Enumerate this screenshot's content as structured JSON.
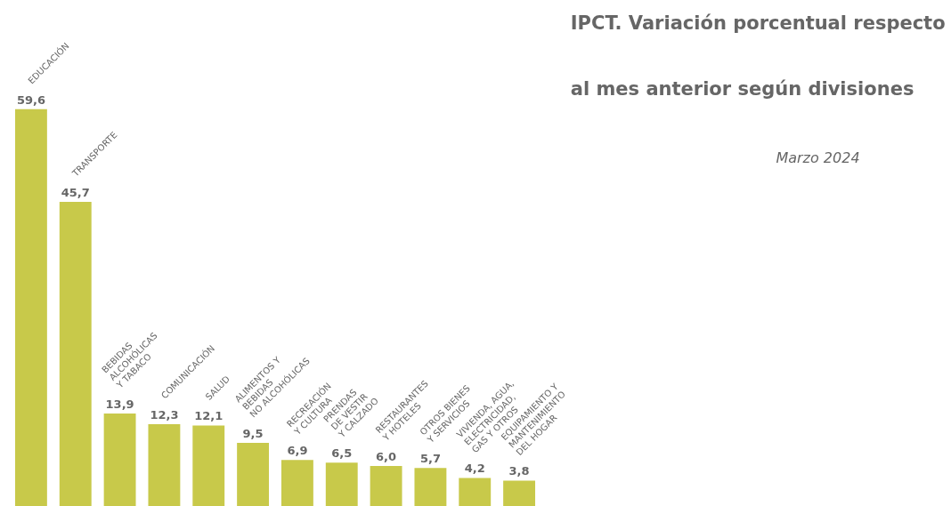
{
  "chart_data": {
    "type": "bar",
    "title": "IPCT. Variación porcentual respecto\nal mes anterior según divisiones",
    "subtitle": "Marzo 2024",
    "categories": [
      "EDUCACIÓN",
      "TRANSPORTE",
      "BEBIDAS\nALCOHÓLICAS\nY TABACO",
      "COMUNICACIÓN",
      "SALUD",
      "ALIMENTOS Y\nBEBIDAS\nNO ALCOHÓLICAS",
      "RECREACIÓN\nY CULTURA",
      "PRENDAS\nDE VESTIR\nY CALZADO",
      "RESTAURANTES\nY HOTELES",
      "OTROS BIENES\nY SERVICIOS",
      "VIVIENDA, AGUA,\nELECTRICIDAD,\nGAS Y OTROS",
      "EQUIPAMIENTO Y\nMANTENIMIENTO\nDEL HOGAR"
    ],
    "values": [
      59.6,
      45.7,
      13.9,
      12.3,
      12.1,
      9.5,
      6.9,
      6.5,
      6.0,
      5.7,
      4.2,
      3.8
    ],
    "value_labels": [
      "59,6",
      "45,7",
      "13,9",
      "12,3",
      "12,1",
      "9,5",
      "6,9",
      "6,5",
      "6,0",
      "5,7",
      "4,2",
      "3,8"
    ],
    "data_labels": true,
    "color": "#c8c94a",
    "ylim": [
      0,
      72
    ],
    "grid": false,
    "tick_labels": false
  }
}
